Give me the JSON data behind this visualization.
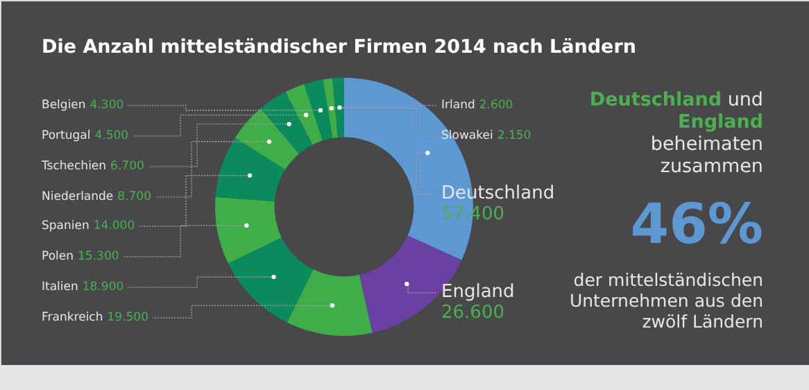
{
  "chart_data": {
    "type": "donut",
    "title": "Die Anzahl mittelständischer Firmen 2014 nach Ländern",
    "categories": [
      "Deutschland",
      "England",
      "Frankreich",
      "Italien",
      "Polen",
      "Spanien",
      "Niederlande",
      "Tschechien",
      "Portugal",
      "Belgien",
      "Slowakei",
      "Irland"
    ],
    "values": [
      57400,
      26600,
      19500,
      18900,
      15300,
      14000,
      8700,
      6700,
      4500,
      4300,
      2150,
      2600
    ],
    "value_labels": [
      "57.400",
      "26.600",
      "19.500",
      "18.900",
      "15.300",
      "14.000",
      "8.700",
      "6.700",
      "4.500",
      "4.300",
      "2.150",
      "2.600"
    ],
    "colors": [
      "#5d98d2",
      "#6a41a3",
      "#3fae49",
      "#0b8a5e",
      "#3fae49",
      "#0b8a5e",
      "#3fae49",
      "#0b8a5e",
      "#3fae49",
      "#0b8a5e",
      "#3fae49",
      "#0b8a5e"
    ],
    "annotations": [
      "Deutschland und England beheimaten zusammen",
      "46%",
      "der mittelständischen Unternehmen aus den zwölf Ländern"
    ]
  }
}
